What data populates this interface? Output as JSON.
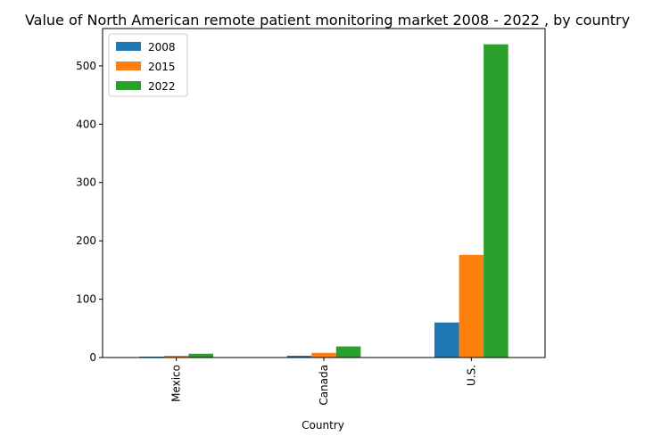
{
  "chart_data": {
    "type": "bar",
    "title": "Value of North American remote patient monitoring market 2008 - 2022 , by country",
    "xlabel": "Country",
    "ylabel": "",
    "categories": [
      "Mexico",
      "Canada",
      "U.S."
    ],
    "series": [
      {
        "name": "2008",
        "color": "#1f77b4",
        "values": [
          1.5,
          3,
          60
        ]
      },
      {
        "name": "2015",
        "color": "#ff7f0e",
        "values": [
          3,
          8,
          176
        ]
      },
      {
        "name": "2022",
        "color": "#2ca02c",
        "values": [
          6.5,
          19,
          537
        ]
      }
    ],
    "ylim": [
      0,
      564
    ],
    "yticks": [
      0,
      100,
      200,
      300,
      400,
      500
    ],
    "legend_position": "top-left",
    "grid": false
  }
}
